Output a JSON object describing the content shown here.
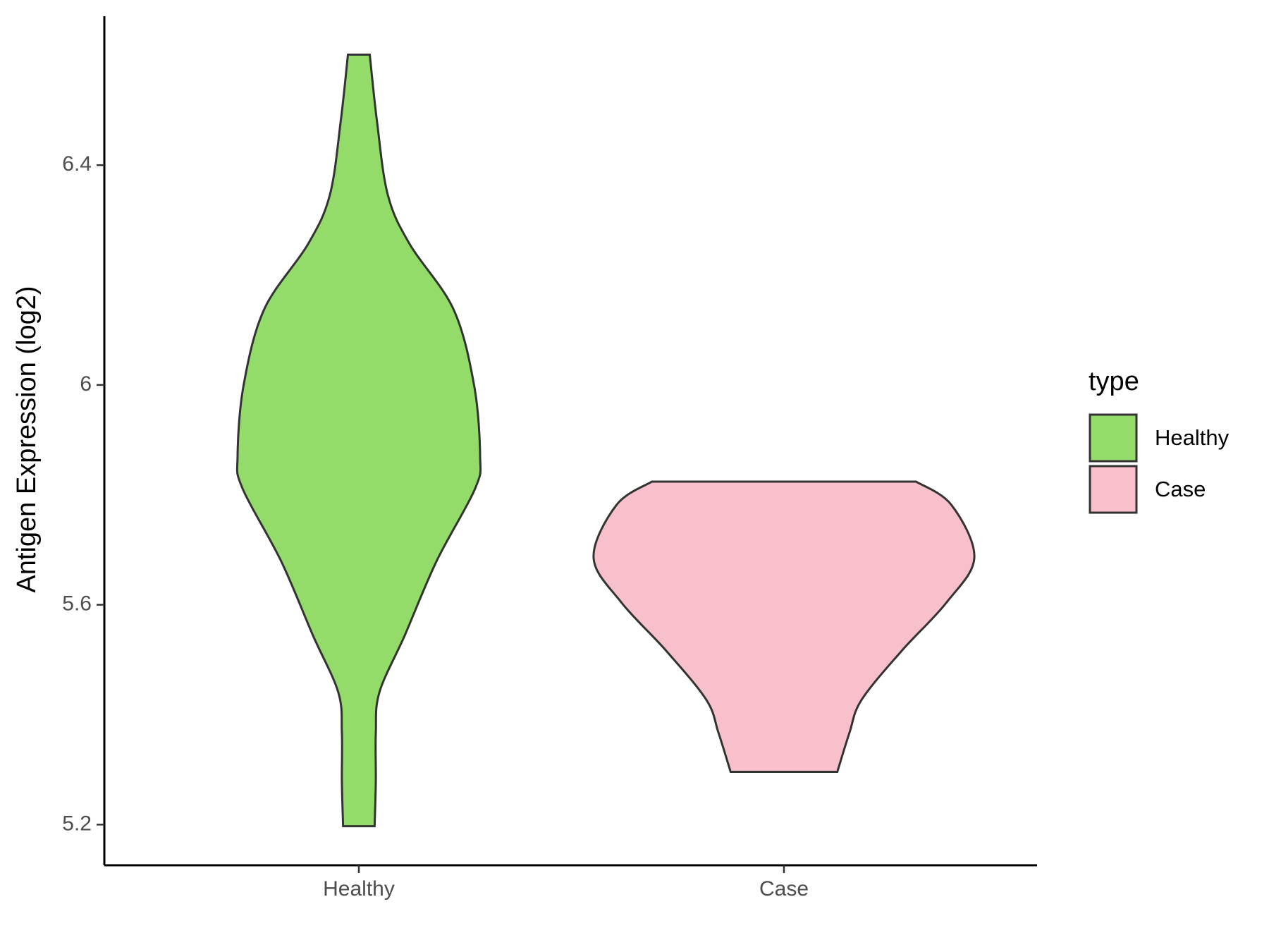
{
  "chart_data": {
    "type": "violin",
    "y_label": "Antigen Expression (log2)",
    "categories": [
      "Healthy",
      "Case"
    ],
    "ylim": [
      5.126,
      6.671
    ],
    "yticks": [
      5.2,
      5.6,
      6.0,
      6.4
    ],
    "legend_title": "type",
    "legend": "right",
    "series": [
      {
        "name": "Healthy",
        "color": "#94dc6a",
        "y": [
          6.601,
          6.479,
          6.345,
          6.256,
          6.138,
          6.0,
          5.871,
          5.812,
          5.679,
          5.545,
          5.441,
          5.367,
          5.279,
          5.197
        ],
        "density": [
          0.09,
          0.15,
          0.24,
          0.42,
          0.78,
          0.95,
          1.0,
          0.96,
          0.64,
          0.38,
          0.17,
          0.14,
          0.14,
          0.13
        ]
      },
      {
        "name": "Case",
        "color": "#f8c0cb",
        "y": [
          5.824,
          5.782,
          5.686,
          5.604,
          5.516,
          5.427,
          5.367,
          5.296
        ],
        "density": [
          1.09,
          1.38,
          1.57,
          1.34,
          0.97,
          0.64,
          0.54,
          0.44
        ]
      }
    ]
  }
}
